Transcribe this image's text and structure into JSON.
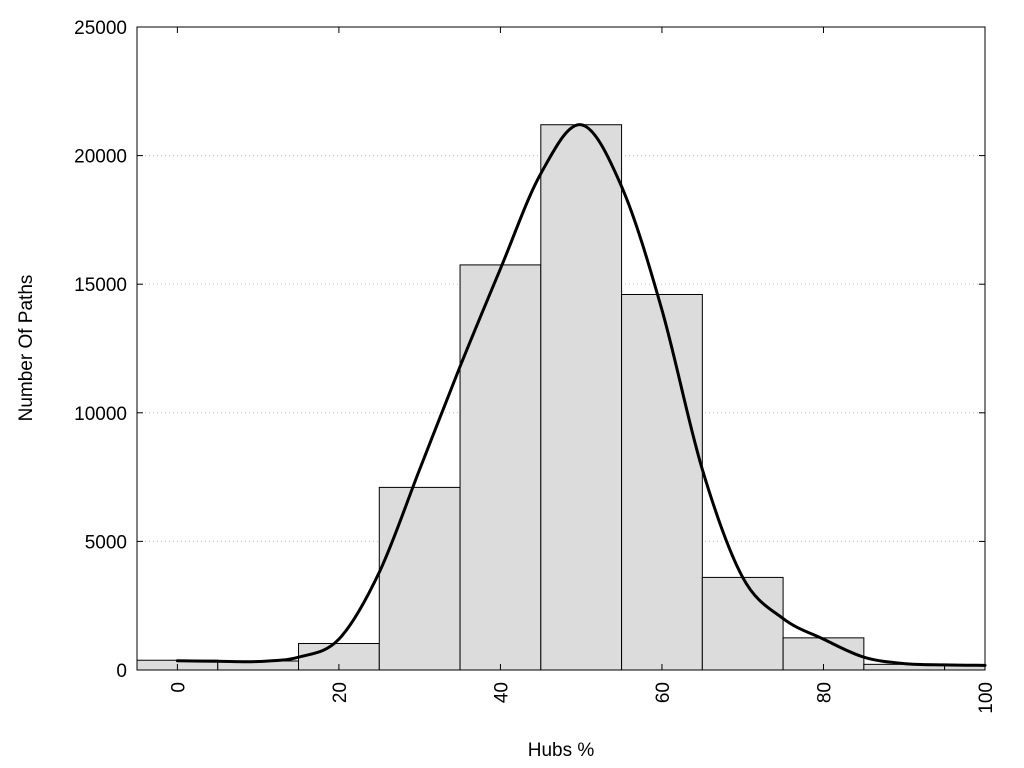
{
  "chart_data": {
    "type": "bar",
    "title": "",
    "xlabel": "Hubs %",
    "ylabel": "Number Of Paths",
    "xlim": [
      -5,
      100
    ],
    "ylim": [
      0,
      25000
    ],
    "x_ticks": [
      0,
      20,
      40,
      60,
      80,
      100
    ],
    "x_tick_labels": [
      "0",
      "20",
      "40",
      "60",
      "80",
      "100"
    ],
    "y_ticks": [
      0,
      5000,
      10000,
      15000,
      20000,
      25000
    ],
    "y_tick_labels": [
      "0",
      "5000",
      "10000",
      "15000",
      "20000",
      "25000"
    ],
    "grid": "horizontal dotted",
    "bin_width": 10,
    "bars": [
      {
        "x": 0,
        "value": 380
      },
      {
        "x": 10,
        "value": 350
      },
      {
        "x": 20,
        "value": 1030
      },
      {
        "x": 30,
        "value": 7100
      },
      {
        "x": 40,
        "value": 15750
      },
      {
        "x": 50,
        "value": 21200
      },
      {
        "x": 60,
        "value": 14600
      },
      {
        "x": 70,
        "value": 3600
      },
      {
        "x": 80,
        "value": 1250
      },
      {
        "x": 90,
        "value": 220
      },
      {
        "x": 100,
        "value": 180
      }
    ],
    "density_curve": [
      {
        "x": 0,
        "y": 360
      },
      {
        "x": 5,
        "y": 340
      },
      {
        "x": 10,
        "y": 330
      },
      {
        "x": 15,
        "y": 500
      },
      {
        "x": 20,
        "y": 1200
      },
      {
        "x": 25,
        "y": 3800
      },
      {
        "x": 30,
        "y": 7800
      },
      {
        "x": 35,
        "y": 11800
      },
      {
        "x": 40,
        "y": 15600
      },
      {
        "x": 45,
        "y": 19300
      },
      {
        "x": 50,
        "y": 21200
      },
      {
        "x": 55,
        "y": 18800
      },
      {
        "x": 60,
        "y": 14000
      },
      {
        "x": 65,
        "y": 7800
      },
      {
        "x": 70,
        "y": 3600
      },
      {
        "x": 75,
        "y": 2000
      },
      {
        "x": 80,
        "y": 1200
      },
      {
        "x": 85,
        "y": 500
      },
      {
        "x": 90,
        "y": 250
      },
      {
        "x": 95,
        "y": 200
      },
      {
        "x": 100,
        "y": 180
      }
    ],
    "colors": {
      "bar_fill": "#dcdcdc",
      "bar_stroke": "#000000",
      "curve": "#000000",
      "grid": "#bbbbbb"
    }
  }
}
